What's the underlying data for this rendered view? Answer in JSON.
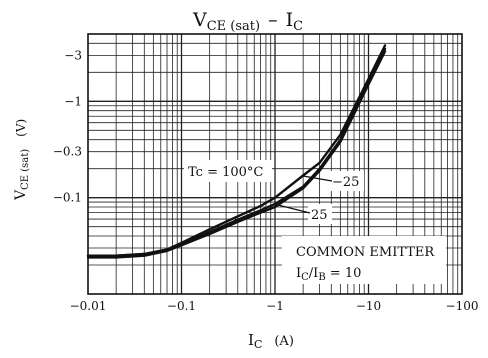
{
  "chart_data": {
    "type": "line",
    "title_main": "V",
    "title_sub": "CE (sat)",
    "title_dash": "–",
    "title_i": "I",
    "title_isub": "C",
    "xlabel_main": "I",
    "xlabel_sub": "C",
    "xlabel_unit": "(A)",
    "ylabel_main": "V",
    "ylabel_sub": "CE (sat)",
    "ylabel_unit": "(V)",
    "x_scale": "log",
    "y_scale": "log",
    "xlim": [
      0.01,
      100
    ],
    "ylim": [
      0.01,
      5
    ],
    "x_ticks": [
      {
        "value": 0.01,
        "label": "−0.01"
      },
      {
        "value": 0.1,
        "label": "−0.1"
      },
      {
        "value": 1,
        "label": "−1"
      },
      {
        "value": 10,
        "label": "−10"
      },
      {
        "value": 100,
        "label": "−100"
      }
    ],
    "y_ticks": [
      {
        "value": 3,
        "label": "−3"
      },
      {
        "value": 1,
        "label": "−1"
      },
      {
        "value": 0.3,
        "label": "−0.3"
      },
      {
        "value": 0.1,
        "label": "−0.1"
      }
    ],
    "grid": true,
    "series": [
      {
        "name": "Tc = 100°C",
        "x": [
          0.01,
          0.02,
          0.04,
          0.07,
          0.1,
          0.2,
          0.4,
          0.7,
          1,
          2,
          3,
          5,
          10,
          15
        ],
        "y": [
          0.025,
          0.025,
          0.026,
          0.029,
          0.033,
          0.044,
          0.059,
          0.074,
          0.086,
          0.13,
          0.2,
          0.4,
          1.6,
          3.5
        ]
      },
      {
        "name": "−25",
        "x": [
          0.01,
          0.02,
          0.04,
          0.07,
          0.1,
          0.2,
          0.4,
          0.7,
          1,
          2,
          3,
          5,
          10,
          15
        ],
        "y": [
          0.025,
          0.025,
          0.026,
          0.029,
          0.034,
          0.047,
          0.064,
          0.082,
          0.1,
          0.17,
          0.23,
          0.45,
          1.7,
          3.8
        ]
      },
      {
        "name": "25",
        "x": [
          0.01,
          0.02,
          0.04,
          0.07,
          0.1,
          0.2,
          0.4,
          0.7,
          1,
          2,
          3,
          5,
          10,
          15
        ],
        "y": [
          0.024,
          0.024,
          0.025,
          0.028,
          0.032,
          0.042,
          0.056,
          0.07,
          0.08,
          0.125,
          0.19,
          0.38,
          1.5,
          3.3
        ]
      }
    ],
    "annotations": {
      "tc_label": "Tc = 100°C",
      "label_m25": "−25",
      "label_25": "25",
      "legend_line1": "COMMON EMITTER",
      "legend_line2_main": "I",
      "legend_line2_sub1": "C",
      "legend_line2_mid": "/I",
      "legend_line2_sub2": "B",
      "legend_line2_end": " = 10"
    }
  }
}
